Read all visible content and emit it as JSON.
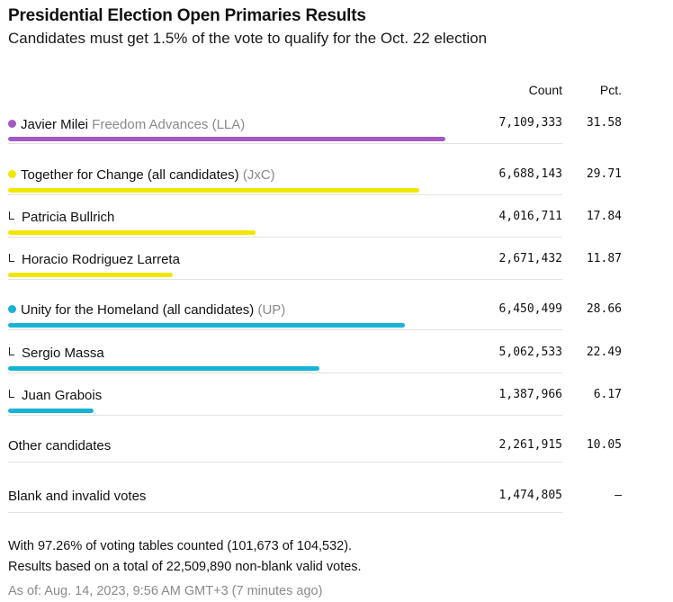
{
  "header": {
    "title": "Presidential Election Open Primaries Results",
    "subtitle": "Candidates must get 1.5% of the vote to qualify for the Oct. 22 election"
  },
  "columns": {
    "count": "Count",
    "pct": "Pct."
  },
  "colors": {
    "LLA": "#a259c4",
    "JxC": "#f2e600",
    "UP": "#17b3d6"
  },
  "chart_data": {
    "type": "bar",
    "title": "Presidential Election Open Primaries Results",
    "subtitle": "Candidates must get 1.5% of the vote to qualify for the Oct. 22 election",
    "rows": [
      {
        "name": "Javier Milei",
        "party": "Freedom Advances (LLA)",
        "count": "7,109,333",
        "pct": "31.58",
        "value": 31.58,
        "color": "#a259c4",
        "kind": "lead"
      },
      {
        "name": "Together for Change (all candidates)",
        "party": "(JxC)",
        "count": "6,688,143",
        "pct": "29.71",
        "value": 29.71,
        "color": "#f2e600",
        "kind": "lead"
      },
      {
        "name": "Patricia Bullrich",
        "party": "",
        "count": "4,016,711",
        "pct": "17.84",
        "value": 17.84,
        "color": "#f2e600",
        "kind": "sub"
      },
      {
        "name": "Horacio Rodriguez Larreta",
        "party": "",
        "count": "2,671,432",
        "pct": "11.87",
        "value": 11.87,
        "color": "#f2e600",
        "kind": "sub"
      },
      {
        "name": "Unity for the Homeland (all candidates)",
        "party": "(UP)",
        "count": "6,450,499",
        "pct": "28.66",
        "value": 28.66,
        "color": "#17b3d6",
        "kind": "lead"
      },
      {
        "name": "Sergio Massa",
        "party": "",
        "count": "5,062,533",
        "pct": "22.49",
        "value": 22.49,
        "color": "#17b3d6",
        "kind": "sub"
      },
      {
        "name": "Juan Grabois",
        "party": "",
        "count": "1,387,966",
        "pct": "6.17",
        "value": 6.17,
        "color": "#17b3d6",
        "kind": "sub"
      },
      {
        "name": "Other candidates",
        "party": "",
        "count": "2,261,915",
        "pct": "10.05",
        "value": null,
        "color": "",
        "kind": "plain"
      },
      {
        "name": "Blank and invalid votes",
        "party": "",
        "count": "1,474,805",
        "pct": "–",
        "value": null,
        "color": "",
        "kind": "plain"
      }
    ]
  },
  "footer": {
    "note1": "With 97.26% of voting tables counted (101,673 of 104,532).",
    "note2": "Results based on a total of 22,509,890 non-blank valid votes.",
    "asof": "As of: Aug. 14, 2023, 9:56 AM GMT+3 (7 minutes ago)"
  }
}
